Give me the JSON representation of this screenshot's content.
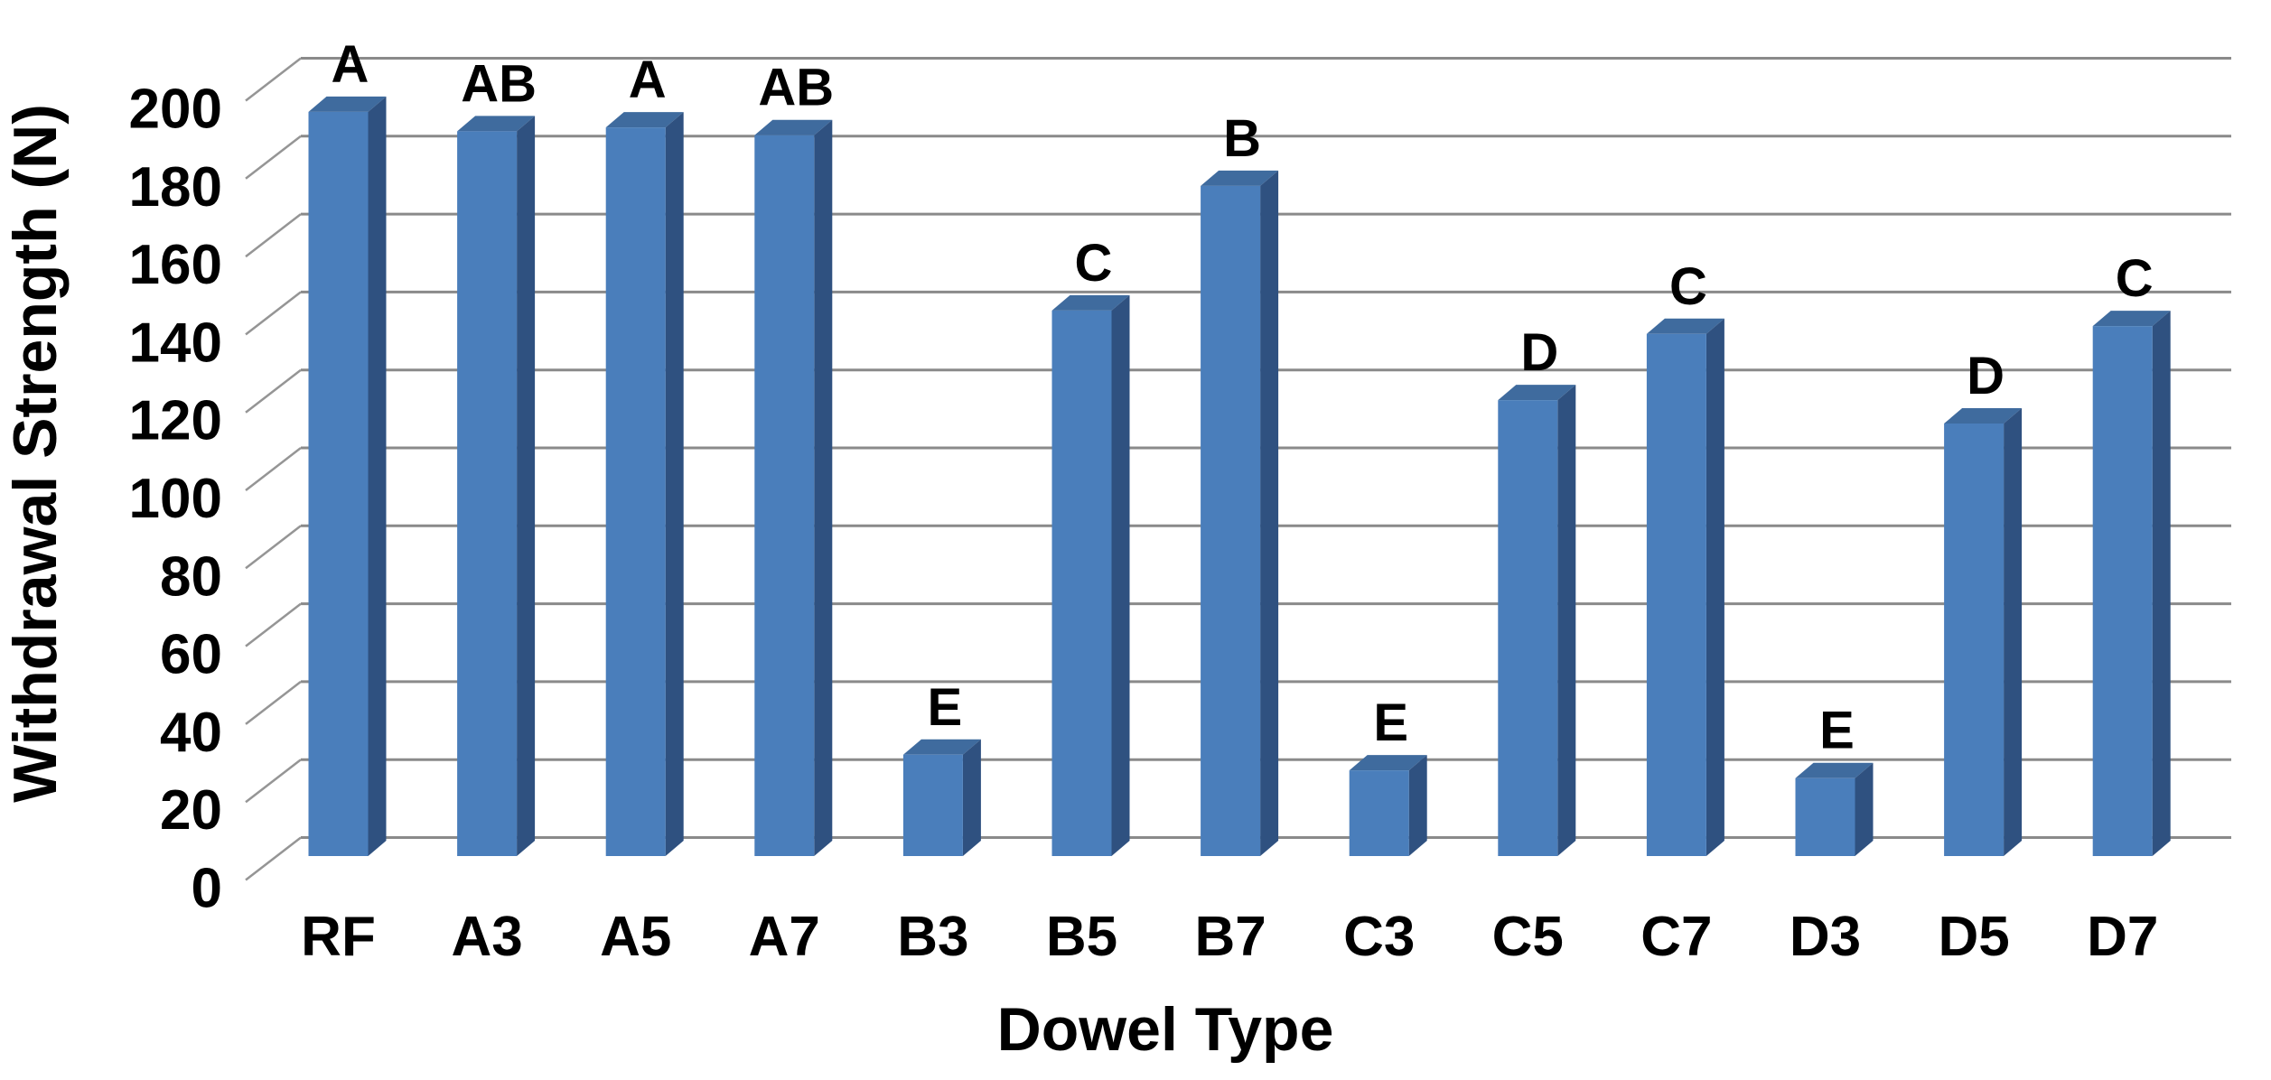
{
  "chart_data": {
    "type": "bar",
    "title": "",
    "xlabel": "Dowel Type",
    "ylabel": "Withdrawal Strength (N)",
    "categories": [
      "RF",
      "A3",
      "A5",
      "A7",
      "B3",
      "B5",
      "B7",
      "C3",
      "C5",
      "C7",
      "D3",
      "D5",
      "D7"
    ],
    "values": [
      191,
      186,
      187,
      185,
      26,
      140,
      172,
      22,
      117,
      134,
      20,
      111,
      136
    ],
    "bar_letters": [
      "A",
      "AB",
      "A",
      "AB",
      "E",
      "C",
      "B",
      "E",
      "D",
      "C",
      "E",
      "D",
      "C"
    ],
    "y_ticks": [
      0,
      20,
      40,
      60,
      80,
      100,
      120,
      140,
      160,
      180,
      200
    ],
    "ylim": [
      0,
      200
    ],
    "grid": true,
    "style_3d": true,
    "legend": "none",
    "colors": {
      "bar_front": "#4a7ebb",
      "bar_side": "#2f5180",
      "bar_top": "#3f6b9e",
      "gridline": "#8a8a8a",
      "tick": "#959595",
      "text": "#000000",
      "background": "#ffffff"
    }
  }
}
